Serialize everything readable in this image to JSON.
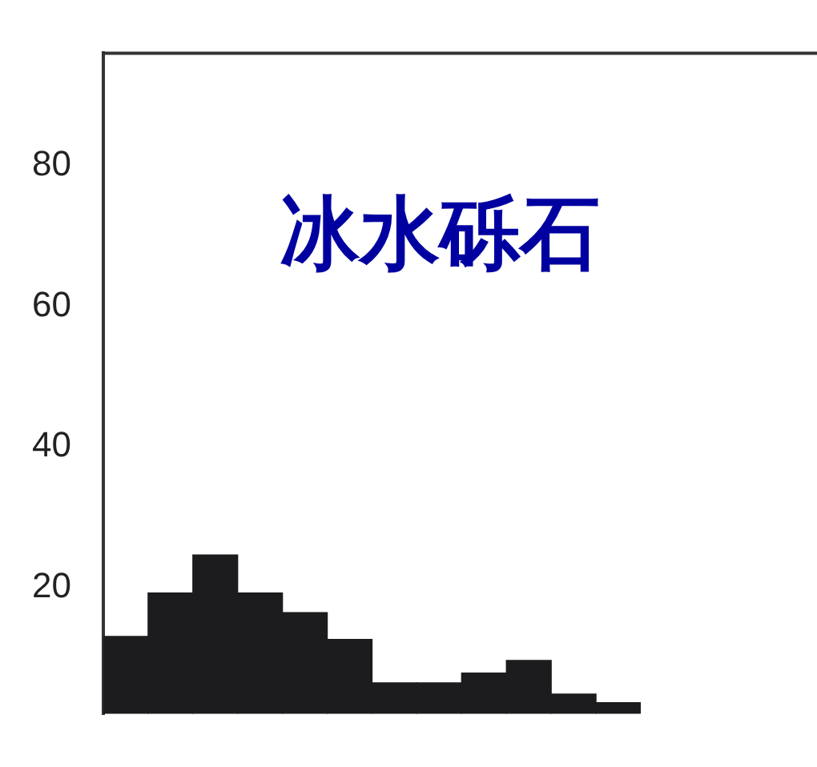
{
  "chart_data": {
    "type": "bar",
    "title": "冰水砾石",
    "categories": [
      null,
      null,
      null,
      null,
      null,
      null,
      null,
      null,
      null,
      null,
      null,
      null
    ],
    "values": [
      13,
      19.2,
      24.6,
      19.2,
      16.4,
      12.6,
      6.4,
      6.4,
      7.8,
      9.6,
      4.8,
      3.6
    ],
    "color": "#1c1c1e",
    "ylim": [
      2,
      96
    ],
    "yticks": [
      20,
      40,
      60,
      80
    ],
    "grid": false,
    "legend": false
  }
}
